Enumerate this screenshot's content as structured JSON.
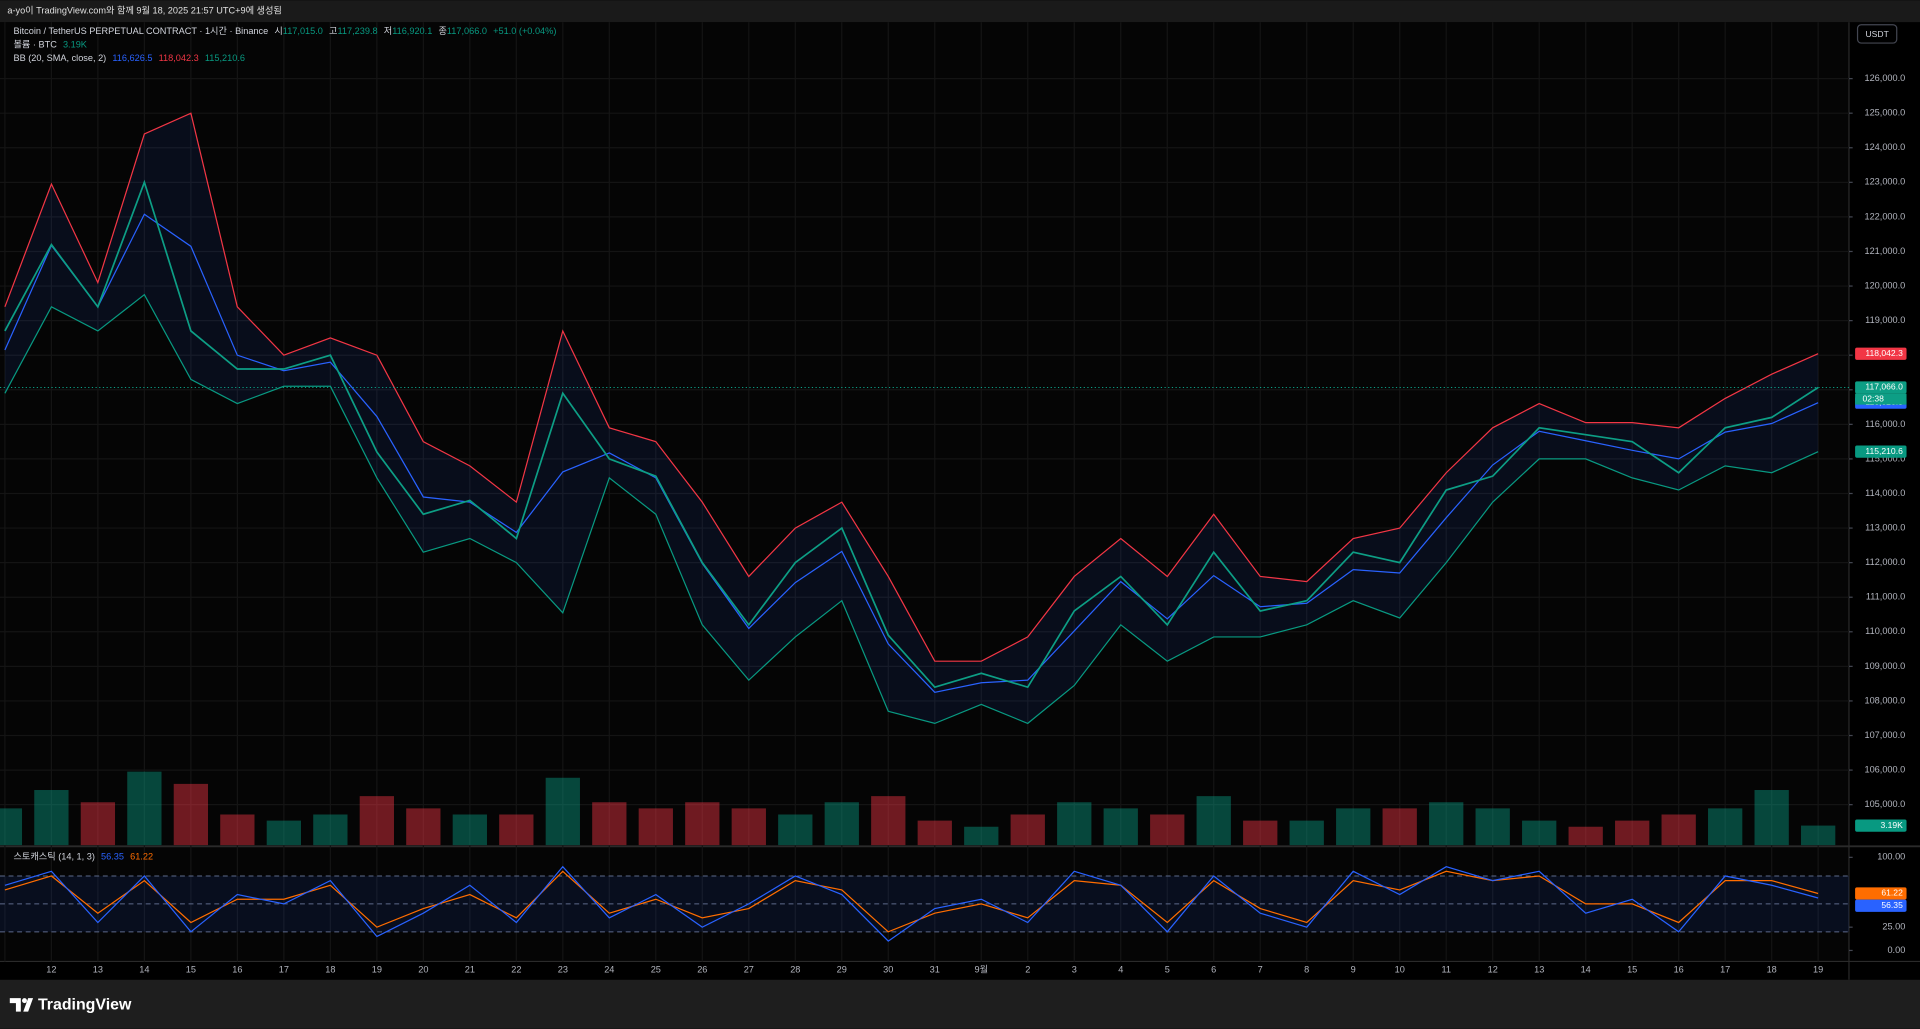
{
  "header": {
    "title": "a-yo이 TradingView.com와 함께 9월 18, 2025 21:57 UTC+9에 생성됨"
  },
  "legend": {
    "symbol": "Bitcoin / TetherUS PERPETUAL CONTRACT · 1시간 · Binance",
    "open_label": "시",
    "open": "117,015.0",
    "high_label": "고",
    "high": "117,239.8",
    "low_label": "저",
    "low": "116,920.1",
    "close_label": "종",
    "close": "117,066.0",
    "change": "+51.0 (+0.04%)",
    "volume_title": "볼륨 · BTC",
    "volume": "3.19K",
    "bb_title": "BB (20, SMA, close, 2)",
    "bb_basis": "116,626.5",
    "bb_upper": "118,042.3",
    "bb_lower": "115,210.6",
    "stoch_title": "스토캐스틱 (14, 1, 3)",
    "stoch_k": "56.35",
    "stoch_d": "61.22"
  },
  "currency": "USDT",
  "countdown": "02:38",
  "brand": "TradingView",
  "chart_data": [
    {
      "type": "line",
      "categories": [
        null,
        "12",
        "13",
        "14",
        "15",
        "16",
        "17",
        "18",
        "19",
        "20",
        "21",
        "22",
        "23",
        "24",
        "25",
        "26",
        "27",
        "28",
        "29",
        "30",
        "31",
        "9월",
        "2",
        "3",
        "4",
        "5",
        "6",
        "7",
        "8",
        "9",
        "10",
        "11",
        "12",
        "13",
        "14",
        "15",
        "16",
        "17",
        "18",
        "19"
      ],
      "ylim": [
        103830,
        127630
      ],
      "yticks": [
        {
          "value": 105000,
          "label": "105,000.0"
        },
        {
          "value": 106000,
          "label": "106,000.0"
        },
        {
          "value": 107000,
          "label": "107,000.0"
        },
        {
          "value": 108000,
          "label": "108,000.0"
        },
        {
          "value": 109000,
          "label": "109,000.0"
        },
        {
          "value": 110000,
          "label": "110,000.0"
        },
        {
          "value": 111000,
          "label": "111,000.0"
        },
        {
          "value": 112000,
          "label": "112,000.0"
        },
        {
          "value": 113000,
          "label": "113,000.0"
        },
        {
          "value": 114000,
          "label": "114,000.0"
        },
        {
          "value": 115000,
          "label": "115,000.0"
        },
        {
          "value": 116000,
          "label": "116,000.0"
        },
        {
          "value": 117000,
          "label": "117,000.0"
        },
        {
          "value": 118000,
          "label": "118,000.0"
        },
        {
          "value": 119000,
          "label": "119,000.0"
        },
        {
          "value": 120000,
          "label": "120,000.0"
        },
        {
          "value": 121000,
          "label": "121,000.0"
        },
        {
          "value": 122000,
          "label": "122,000.0"
        },
        {
          "value": 123000,
          "label": "123,000.0"
        },
        {
          "value": 124000,
          "label": "124,000.0"
        },
        {
          "value": 125000,
          "label": "125,000.0"
        },
        {
          "value": 126000,
          "label": "126,000.0"
        }
      ],
      "grid": true,
      "band_fill": "rgba(41,98,255,0.09)",
      "series": [
        {
          "color": "#f23645",
          "values": [
            119400,
            122950,
            120100,
            124400,
            125000,
            119400,
            118000,
            118500,
            118000,
            115500,
            114800,
            113750,
            118700,
            115900,
            115500,
            113750,
            111600,
            113000,
            113750,
            111600,
            109150,
            109150,
            109850,
            111600,
            112700,
            111600,
            113400,
            111600,
            111450,
            112700,
            113000,
            114600,
            115900,
            116600,
            116050,
            116050,
            115900,
            116750,
            117450,
            118042.3
          ],
          "value_labels": [
            null,
            null,
            null,
            null,
            null,
            null,
            null,
            null,
            null,
            null,
            null,
            null,
            null,
            null,
            null,
            null,
            null,
            null,
            null,
            null,
            null,
            null,
            null,
            null,
            null,
            null,
            null,
            null,
            null,
            null,
            null,
            null,
            null,
            null,
            null,
            null,
            null,
            null,
            null,
            "118,042.3"
          ]
        },
        {
          "color": "#089981",
          "values": [
            116900,
            119400,
            118700,
            119750,
            117300,
            116600,
            117100,
            117100,
            114450,
            112300,
            112700,
            112000,
            110550,
            114450,
            113400,
            110200,
            108600,
            109850,
            110900,
            107700,
            107350,
            107900,
            107350,
            108450,
            110200,
            109150,
            109850,
            109850,
            110200,
            110900,
            110400,
            112000,
            113750,
            115000,
            115000,
            114450,
            114100,
            114800,
            114600,
            115210.6
          ],
          "value_labels": [
            null,
            null,
            null,
            null,
            null,
            null,
            null,
            null,
            null,
            null,
            null,
            null,
            null,
            null,
            null,
            null,
            null,
            null,
            null,
            null,
            null,
            null,
            null,
            null,
            null,
            null,
            null,
            null,
            null,
            null,
            null,
            null,
            null,
            null,
            null,
            null,
            null,
            null,
            null,
            "115,210.6"
          ]
        },
        {
          "color": "#2962ff",
          "values": [
            118150,
            121175,
            119400,
            122075,
            121150,
            118000,
            117550,
            117800,
            116225,
            113900,
            113750,
            112875,
            114625,
            115175,
            114450,
            111975,
            110100,
            111425,
            112325,
            109650,
            108250,
            108525,
            108600,
            110025,
            111450,
            110375,
            111625,
            110725,
            110825,
            111800,
            111700,
            113300,
            114825,
            115800,
            115525,
            115250,
            115000,
            115775,
            116025,
            116626.5
          ],
          "value_labels": [
            null,
            null,
            null,
            null,
            null,
            null,
            null,
            null,
            null,
            null,
            null,
            null,
            null,
            null,
            null,
            null,
            null,
            null,
            null,
            null,
            null,
            null,
            null,
            null,
            null,
            null,
            null,
            null,
            null,
            null,
            null,
            null,
            null,
            null,
            null,
            null,
            null,
            null,
            null,
            "116,626.5"
          ]
        },
        {
          "color": "#0d9e85",
          "values": [
            118700,
            121200,
            119400,
            123000,
            118700,
            117600,
            117600,
            118000,
            115200,
            113400,
            113800,
            112700,
            116900,
            115000,
            114500,
            112000,
            110200,
            112000,
            113000,
            109900,
            108400,
            108800,
            108400,
            110600,
            111600,
            110200,
            112300,
            110600,
            110900,
            112300,
            112000,
            114100,
            114500,
            115900,
            115700,
            115500,
            114600,
            115900,
            116200,
            117066
          ],
          "value_labels": [
            null,
            null,
            null,
            null,
            null,
            null,
            null,
            null,
            null,
            null,
            null,
            null,
            null,
            null,
            null,
            null,
            null,
            null,
            null,
            null,
            null,
            null,
            null,
            null,
            null,
            null,
            null,
            null,
            null,
            null,
            null,
            null,
            null,
            null,
            null,
            null,
            null,
            null,
            null,
            "117,066.0"
          ]
        }
      ]
    },
    {
      "type": "bar",
      "ylim": [
        0,
        40000
      ],
      "colors": [
        "rgba(8,153,129,0.45)",
        "rgba(242,54,69,0.45)"
      ],
      "label_color": "#089981",
      "values": [
        6000,
        9000,
        7000,
        12000,
        10000,
        5000,
        4000,
        5000,
        8000,
        6000,
        5000,
        5000,
        11000,
        7000,
        6000,
        7000,
        6000,
        5000,
        7000,
        8000,
        4000,
        3000,
        5000,
        7000,
        6000,
        5000,
        8000,
        4000,
        4000,
        6000,
        6000,
        7000,
        6000,
        4000,
        3000,
        4000,
        5000,
        6000,
        9000,
        3190
      ],
      "value_labels": [
        null,
        null,
        null,
        null,
        null,
        null,
        null,
        null,
        null,
        null,
        null,
        null,
        null,
        null,
        null,
        null,
        null,
        null,
        null,
        null,
        null,
        null,
        null,
        null,
        null,
        null,
        null,
        null,
        null,
        null,
        null,
        null,
        null,
        null,
        null,
        null,
        null,
        null,
        null,
        "3.19K"
      ]
    },
    {
      "type": "line",
      "ylim": [
        -11.8,
        110.5
      ],
      "yticks": [
        {
          "value": 100,
          "label": "100.00"
        },
        {
          "value": 25,
          "label": "25.00"
        },
        {
          "value": 0,
          "label": "0.00"
        }
      ],
      "bands": [
        20,
        50,
        80
      ],
      "band_fill": "rgba(41,98,255,0.10)",
      "series": [
        {
          "color": "#ff6d00",
          "values": [
            65,
            80,
            40,
            75,
            30,
            55,
            55,
            70,
            25,
            45,
            60,
            35,
            85,
            40,
            55,
            35,
            45,
            75,
            65,
            20,
            40,
            50,
            35,
            75,
            70,
            30,
            75,
            45,
            30,
            75,
            65,
            85,
            75,
            80,
            50,
            50,
            30,
            75,
            75,
            61.22
          ],
          "value_labels": [
            null,
            null,
            null,
            null,
            null,
            null,
            null,
            null,
            null,
            null,
            null,
            null,
            null,
            null,
            null,
            null,
            null,
            null,
            null,
            null,
            null,
            null,
            null,
            null,
            null,
            null,
            null,
            null,
            null,
            null,
            null,
            null,
            null,
            null,
            null,
            null,
            null,
            null,
            null,
            "61.22"
          ]
        },
        {
          "color": "#2962ff",
          "values": [
            70,
            85,
            30,
            80,
            20,
            60,
            50,
            75,
            15,
            40,
            70,
            30,
            90,
            35,
            60,
            25,
            50,
            80,
            60,
            10,
            45,
            55,
            30,
            85,
            70,
            20,
            80,
            40,
            25,
            85,
            60,
            90,
            75,
            85,
            40,
            55,
            20,
            80,
            70,
            56.35
          ],
          "value_labels": [
            null,
            null,
            null,
            null,
            null,
            null,
            null,
            null,
            null,
            null,
            null,
            null,
            null,
            null,
            null,
            null,
            null,
            null,
            null,
            null,
            null,
            null,
            null,
            null,
            null,
            null,
            null,
            null,
            null,
            null,
            null,
            null,
            null,
            null,
            null,
            null,
            null,
            null,
            null,
            "56.35"
          ]
        }
      ]
    }
  ]
}
